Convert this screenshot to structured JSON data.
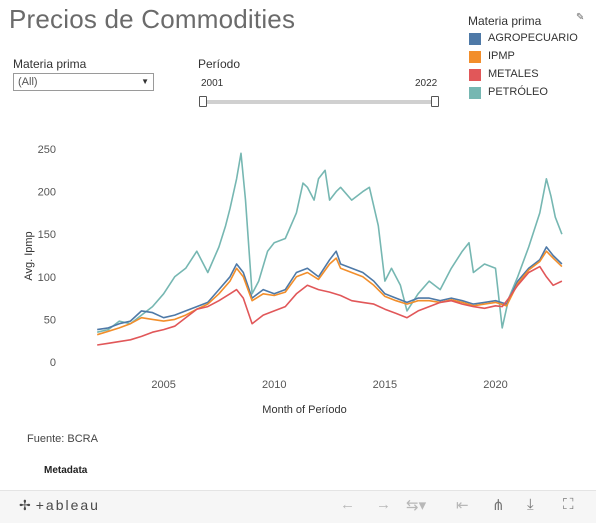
{
  "title": "Precios de Commodities",
  "filters": {
    "materia_prima_label": "Materia prima",
    "materia_prima_value": "(All)",
    "periodo_label": "Período",
    "periodo_start": "2001",
    "periodo_end": "2022"
  },
  "legend": {
    "title": "Materia prima",
    "items": [
      {
        "label": "AGROPECUARIO",
        "color": "#4e79a7"
      },
      {
        "label": "IPMP",
        "color": "#f28e2b"
      },
      {
        "label": "METALES",
        "color": "#e15759"
      },
      {
        "label": "PETRÓLEO",
        "color": "#76b7b2"
      }
    ]
  },
  "source": "Fuente: BCRA",
  "metadata": "Metadata",
  "toolbar": {
    "logo": "+ableau",
    "icons": [
      "tableau-logo-icon",
      "undo-icon",
      "redo-icon",
      "revert-icon",
      "pause-icon",
      "share-icon",
      "download-icon",
      "fullscreen-icon"
    ]
  },
  "chart_data": {
    "type": "line",
    "xlabel": "Month of Período",
    "ylabel": "Avg. Ipmp",
    "xlim": [
      2000.5,
      2023.5
    ],
    "ylim": [
      0,
      250
    ],
    "xticks": [
      2005,
      2010,
      2015,
      2020
    ],
    "yticks": [
      0,
      50,
      100,
      150,
      200,
      250
    ],
    "grid": false,
    "legend_position": "top-right",
    "series": [
      {
        "name": "PETRÓLEO",
        "color": "#76b7b2",
        "points": [
          [
            2002.0,
            35
          ],
          [
            2002.5,
            38
          ],
          [
            2003.0,
            48
          ],
          [
            2003.5,
            45
          ],
          [
            2004.0,
            55
          ],
          [
            2004.5,
            65
          ],
          [
            2005.0,
            80
          ],
          [
            2005.5,
            100
          ],
          [
            2006.0,
            110
          ],
          [
            2006.5,
            130
          ],
          [
            2007.0,
            105
          ],
          [
            2007.5,
            135
          ],
          [
            2007.8,
            160
          ],
          [
            2008.0,
            180
          ],
          [
            2008.3,
            215
          ],
          [
            2008.5,
            245
          ],
          [
            2008.7,
            190
          ],
          [
            2009.0,
            80
          ],
          [
            2009.3,
            95
          ],
          [
            2009.7,
            130
          ],
          [
            2010.0,
            140
          ],
          [
            2010.5,
            145
          ],
          [
            2011.0,
            175
          ],
          [
            2011.3,
            210
          ],
          [
            2011.5,
            205
          ],
          [
            2011.8,
            190
          ],
          [
            2012.0,
            215
          ],
          [
            2012.3,
            225
          ],
          [
            2012.5,
            190
          ],
          [
            2012.8,
            200
          ],
          [
            2013.0,
            205
          ],
          [
            2013.5,
            190
          ],
          [
            2014.0,
            200
          ],
          [
            2014.3,
            205
          ],
          [
            2014.7,
            160
          ],
          [
            2015.0,
            95
          ],
          [
            2015.3,
            110
          ],
          [
            2015.7,
            90
          ],
          [
            2016.0,
            60
          ],
          [
            2016.5,
            80
          ],
          [
            2017.0,
            95
          ],
          [
            2017.5,
            85
          ],
          [
            2018.0,
            110
          ],
          [
            2018.5,
            130
          ],
          [
            2018.8,
            140
          ],
          [
            2019.0,
            105
          ],
          [
            2019.5,
            115
          ],
          [
            2020.0,
            110
          ],
          [
            2020.3,
            40
          ],
          [
            2020.6,
            75
          ],
          [
            2021.0,
            100
          ],
          [
            2021.5,
            135
          ],
          [
            2022.0,
            175
          ],
          [
            2022.3,
            215
          ],
          [
            2022.5,
            195
          ],
          [
            2022.7,
            170
          ],
          [
            2023.0,
            150
          ]
        ]
      },
      {
        "name": "AGROPECUARIO",
        "color": "#4e79a7",
        "points": [
          [
            2002.0,
            38
          ],
          [
            2002.5,
            40
          ],
          [
            2003.0,
            45
          ],
          [
            2003.5,
            48
          ],
          [
            2004.0,
            60
          ],
          [
            2004.5,
            58
          ],
          [
            2005.0,
            52
          ],
          [
            2005.5,
            55
          ],
          [
            2006.0,
            60
          ],
          [
            2006.5,
            65
          ],
          [
            2007.0,
            70
          ],
          [
            2007.5,
            85
          ],
          [
            2008.0,
            100
          ],
          [
            2008.3,
            115
          ],
          [
            2008.6,
            105
          ],
          [
            2009.0,
            75
          ],
          [
            2009.5,
            85
          ],
          [
            2010.0,
            80
          ],
          [
            2010.5,
            85
          ],
          [
            2011.0,
            105
          ],
          [
            2011.5,
            110
          ],
          [
            2012.0,
            100
          ],
          [
            2012.5,
            120
          ],
          [
            2012.8,
            130
          ],
          [
            2013.0,
            115
          ],
          [
            2013.5,
            110
          ],
          [
            2014.0,
            105
          ],
          [
            2014.5,
            95
          ],
          [
            2015.0,
            80
          ],
          [
            2015.5,
            75
          ],
          [
            2016.0,
            70
          ],
          [
            2016.5,
            75
          ],
          [
            2017.0,
            75
          ],
          [
            2017.5,
            72
          ],
          [
            2018.0,
            75
          ],
          [
            2018.5,
            72
          ],
          [
            2019.0,
            68
          ],
          [
            2019.5,
            70
          ],
          [
            2020.0,
            72
          ],
          [
            2020.5,
            68
          ],
          [
            2021.0,
            95
          ],
          [
            2021.5,
            110
          ],
          [
            2022.0,
            120
          ],
          [
            2022.3,
            135
          ],
          [
            2022.6,
            125
          ],
          [
            2023.0,
            115
          ]
        ]
      },
      {
        "name": "IPMP",
        "color": "#f28e2b",
        "points": [
          [
            2002.0,
            32
          ],
          [
            2002.5,
            36
          ],
          [
            2003.0,
            40
          ],
          [
            2003.5,
            45
          ],
          [
            2004.0,
            52
          ],
          [
            2004.5,
            50
          ],
          [
            2005.0,
            48
          ],
          [
            2005.5,
            50
          ],
          [
            2006.0,
            55
          ],
          [
            2006.5,
            62
          ],
          [
            2007.0,
            68
          ],
          [
            2007.5,
            80
          ],
          [
            2008.0,
            95
          ],
          [
            2008.3,
            110
          ],
          [
            2008.6,
            100
          ],
          [
            2009.0,
            72
          ],
          [
            2009.5,
            80
          ],
          [
            2010.0,
            78
          ],
          [
            2010.5,
            82
          ],
          [
            2011.0,
            100
          ],
          [
            2011.5,
            105
          ],
          [
            2012.0,
            97
          ],
          [
            2012.5,
            115
          ],
          [
            2012.8,
            122
          ],
          [
            2013.0,
            110
          ],
          [
            2013.5,
            105
          ],
          [
            2014.0,
            100
          ],
          [
            2014.5,
            90
          ],
          [
            2015.0,
            77
          ],
          [
            2015.5,
            72
          ],
          [
            2016.0,
            68
          ],
          [
            2016.5,
            72
          ],
          [
            2017.0,
            72
          ],
          [
            2017.5,
            70
          ],
          [
            2018.0,
            73
          ],
          [
            2018.5,
            70
          ],
          [
            2019.0,
            66
          ],
          [
            2019.5,
            68
          ],
          [
            2020.0,
            70
          ],
          [
            2020.5,
            66
          ],
          [
            2021.0,
            92
          ],
          [
            2021.5,
            108
          ],
          [
            2022.0,
            118
          ],
          [
            2022.3,
            130
          ],
          [
            2022.6,
            122
          ],
          [
            2023.0,
            112
          ]
        ]
      },
      {
        "name": "METALES",
        "color": "#e15759",
        "points": [
          [
            2002.0,
            20
          ],
          [
            2002.5,
            22
          ],
          [
            2003.0,
            24
          ],
          [
            2003.5,
            26
          ],
          [
            2004.0,
            30
          ],
          [
            2004.5,
            35
          ],
          [
            2005.0,
            38
          ],
          [
            2005.5,
            42
          ],
          [
            2006.0,
            52
          ],
          [
            2006.5,
            62
          ],
          [
            2007.0,
            65
          ],
          [
            2007.5,
            72
          ],
          [
            2008.0,
            80
          ],
          [
            2008.3,
            85
          ],
          [
            2008.6,
            75
          ],
          [
            2009.0,
            45
          ],
          [
            2009.5,
            55
          ],
          [
            2010.0,
            60
          ],
          [
            2010.5,
            65
          ],
          [
            2011.0,
            80
          ],
          [
            2011.5,
            90
          ],
          [
            2012.0,
            85
          ],
          [
            2012.5,
            82
          ],
          [
            2013.0,
            78
          ],
          [
            2013.5,
            72
          ],
          [
            2014.0,
            70
          ],
          [
            2014.5,
            68
          ],
          [
            2015.0,
            62
          ],
          [
            2015.5,
            57
          ],
          [
            2016.0,
            52
          ],
          [
            2016.5,
            60
          ],
          [
            2017.0,
            65
          ],
          [
            2017.5,
            70
          ],
          [
            2018.0,
            72
          ],
          [
            2018.5,
            68
          ],
          [
            2019.0,
            65
          ],
          [
            2019.5,
            63
          ],
          [
            2020.0,
            66
          ],
          [
            2020.3,
            65
          ],
          [
            2020.6,
            75
          ],
          [
            2021.0,
            90
          ],
          [
            2021.5,
            105
          ],
          [
            2022.0,
            112
          ],
          [
            2022.3,
            100
          ],
          [
            2022.6,
            90
          ],
          [
            2023.0,
            95
          ]
        ]
      }
    ]
  }
}
